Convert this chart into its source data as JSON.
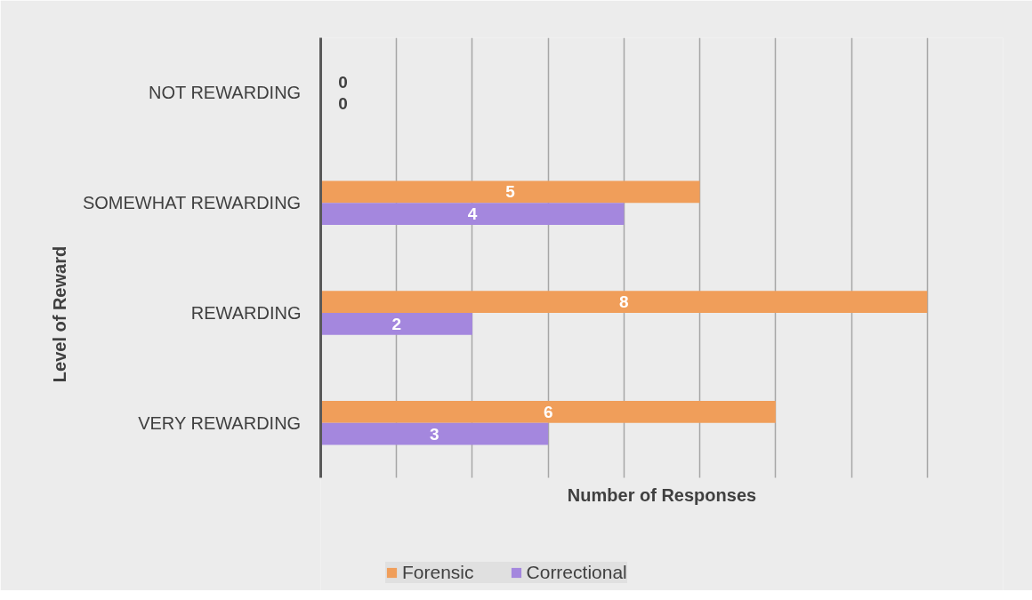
{
  "chart_data": {
    "type": "bar",
    "orientation": "horizontal",
    "categories": [
      "NOT REWARDING",
      "SOMEWHAT REWARDING",
      "REWARDING",
      "VERY REWARDING"
    ],
    "series": [
      {
        "name": "Forensic",
        "color": "#f09e5a",
        "values": [
          0,
          5,
          8,
          6
        ]
      },
      {
        "name": "Correctional",
        "color": "#a487de",
        "values": [
          0,
          4,
          2,
          3
        ]
      }
    ],
    "xlabel": "Number of Responses",
    "ylabel": "Level of Reward",
    "xlim": [
      0,
      9
    ],
    "xticks": [
      {
        "value": 0,
        "label": null
      },
      {
        "value": 1,
        "label": null
      },
      {
        "value": 2,
        "label": null
      },
      {
        "value": 3,
        "label": null
      },
      {
        "value": 4,
        "label": null
      },
      {
        "value": 5,
        "label": null
      },
      {
        "value": 6,
        "label": null
      },
      {
        "value": 7,
        "label": null
      },
      {
        "value": 8,
        "label": null
      },
      {
        "value": 9,
        "label": null
      }
    ],
    "tick_labels": "y",
    "grid": "x",
    "legend": "bottom",
    "data_labels": true
  }
}
